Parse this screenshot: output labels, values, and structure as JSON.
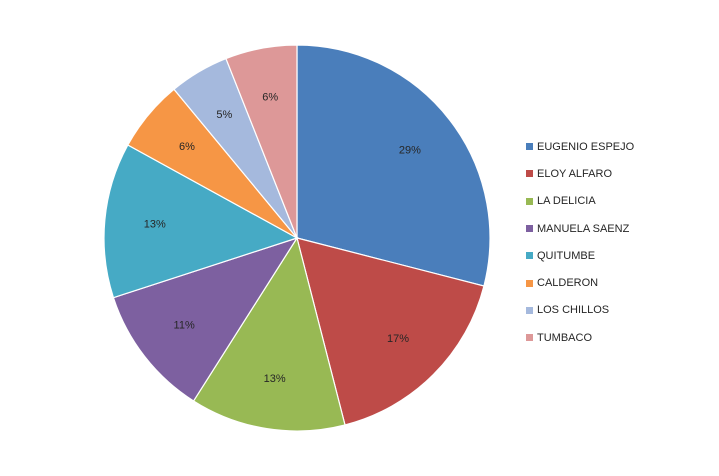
{
  "chart_data": {
    "type": "pie",
    "title": "",
    "categories": [
      "EUGENIO ESPEJO",
      "ELOY ALFARO",
      "LA DELICIA",
      "MANUELA SAENZ",
      "QUITUMBE",
      "CALDERON",
      "LOS CHILLOS",
      "TUMBACO"
    ],
    "values": [
      29,
      17,
      13,
      11,
      13,
      6,
      5,
      6
    ],
    "labels": [
      "29%",
      "17%",
      "13%",
      "11%",
      "13%",
      "6%",
      "5%",
      "6%"
    ],
    "colors": [
      "#4A7EBB",
      "#BE4B48",
      "#98B954",
      "#7D60A0",
      "#46AAC5",
      "#F69645",
      "#A5B9DD",
      "#DD9898"
    ],
    "start_angle": "12 o'clock",
    "direction": "clockwise",
    "legend_position": "right"
  }
}
